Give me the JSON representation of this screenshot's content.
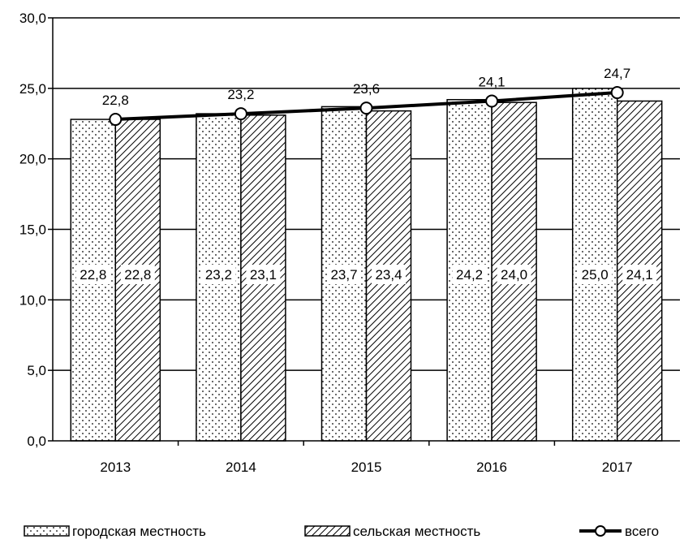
{
  "chart_data": {
    "type": "bar",
    "categories": [
      "2013",
      "2014",
      "2015",
      "2016",
      "2017"
    ],
    "series": [
      {
        "name": "городская местность",
        "kind": "bar",
        "pattern": "dots",
        "values": [
          22.8,
          23.2,
          23.7,
          24.2,
          25.0
        ],
        "labels": [
          "22,8",
          "23,2",
          "23,7",
          "24,2",
          "25,0"
        ]
      },
      {
        "name": "сельская местность",
        "kind": "bar",
        "pattern": "diagonal-hatch",
        "values": [
          22.8,
          23.1,
          23.4,
          24.0,
          24.1
        ],
        "labels": [
          "22,8",
          "23,1",
          "23,4",
          "24,0",
          "24,1"
        ]
      },
      {
        "name": "всего",
        "kind": "line",
        "marker": "open-circle",
        "values": [
          22.8,
          23.2,
          23.6,
          24.1,
          24.7
        ],
        "labels": [
          "22,8",
          "23,2",
          "23,6",
          "24,1",
          "24,7"
        ]
      }
    ],
    "ylim": [
      0,
      30
    ],
    "yticks": [
      "0,0",
      "5,0",
      "10,0",
      "15,0",
      "20,0",
      "25,0",
      "30,0"
    ],
    "grid": true,
    "legend_position": "bottom",
    "colors": {
      "line": "#000000",
      "bar_fill": "#ffffff",
      "pattern": "#000000"
    }
  }
}
